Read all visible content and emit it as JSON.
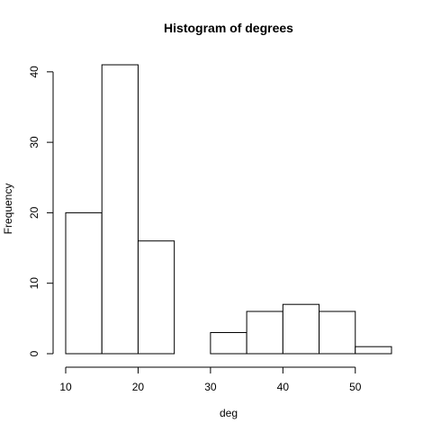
{
  "chart_data": {
    "type": "bar",
    "subtype": "histogram",
    "title": "Histogram of degrees",
    "xlabel": "deg",
    "ylabel": "Frequency",
    "bins": [
      {
        "from": 10,
        "to": 15,
        "count": 20
      },
      {
        "from": 15,
        "to": 20,
        "count": 41
      },
      {
        "from": 20,
        "to": 25,
        "count": 16
      },
      {
        "from": 25,
        "to": 30,
        "count": 0
      },
      {
        "from": 30,
        "to": 35,
        "count": 3
      },
      {
        "from": 35,
        "to": 40,
        "count": 6
      },
      {
        "from": 40,
        "to": 45,
        "count": 7
      },
      {
        "from": 45,
        "to": 50,
        "count": 6
      },
      {
        "from": 50,
        "to": 55,
        "count": 1
      }
    ],
    "xlim": [
      10,
      55
    ],
    "ylim": [
      0,
      41
    ],
    "xticks": [
      10,
      20,
      30,
      40,
      50
    ],
    "yticks": [
      0,
      10,
      20,
      30,
      40
    ],
    "grid": false,
    "bar_fill": "#ffffff",
    "bar_stroke": "#000000"
  }
}
